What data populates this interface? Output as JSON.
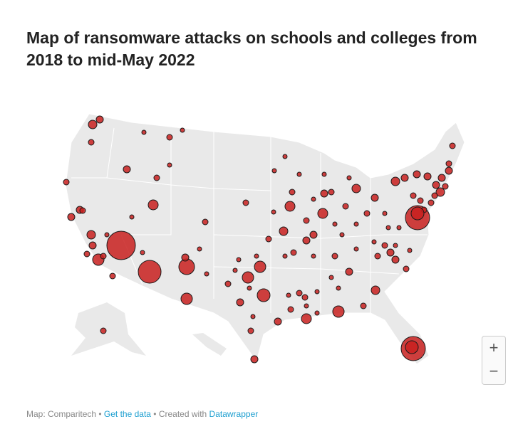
{
  "title": "Map of ransomware attacks on schools and colleges from 2018 to mid-May 2022",
  "zoom_controls": {
    "zoom_in": "+",
    "zoom_out": "−"
  },
  "footer": {
    "source": "Map: Comparitech",
    "sep1": " • ",
    "get_data": "Get the data",
    "sep2": " • Created with ",
    "created_with": "Datawrapper"
  },
  "colors": {
    "land": "#e8e8e8",
    "marker": "#c8201f",
    "marker_stroke": "#1a1a1a",
    "link": "#1d9fd0"
  }
}
